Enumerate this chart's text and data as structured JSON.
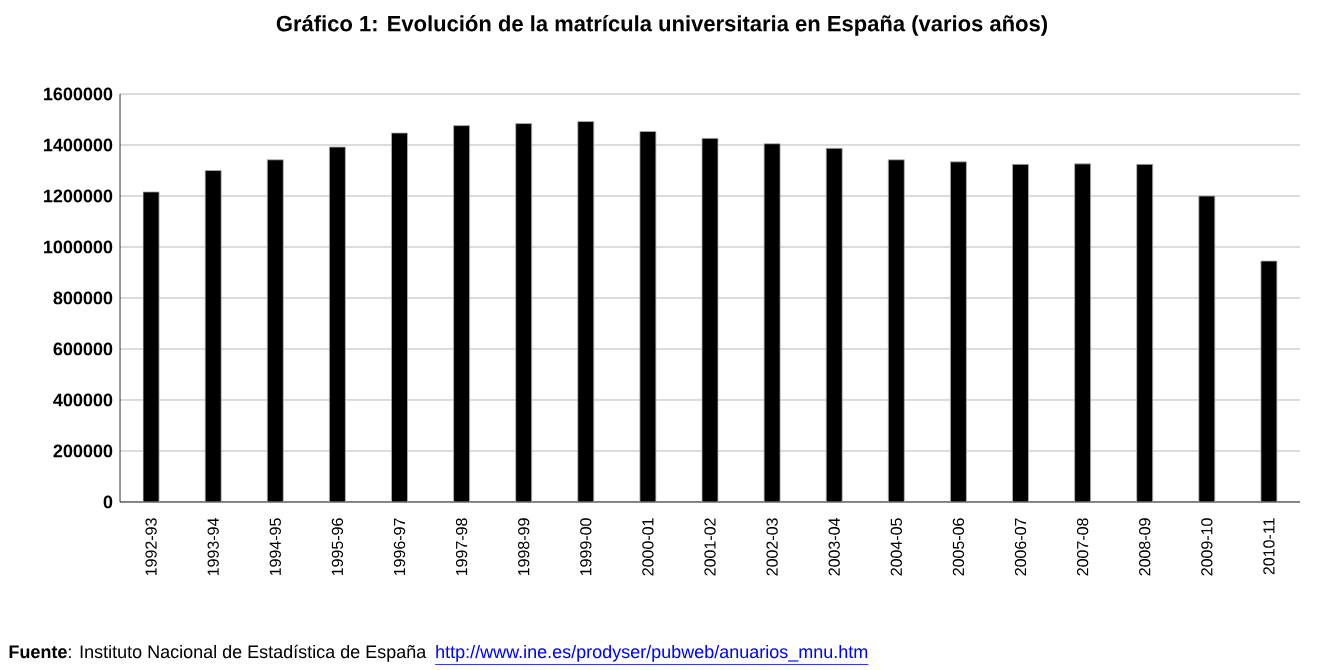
{
  "chart_data": {
    "type": "bar",
    "title": "Gráfico 1: Evolución de la matrícula universitaria en España (varios años)",
    "categories": [
      "1992-93",
      "1993-94",
      "1994-95",
      "1995-96",
      "1996-97",
      "1997-98",
      "1998-99",
      "1999-00",
      "2000-01",
      "2001-02",
      "2002-03",
      "2003-04",
      "2004-05",
      "2005-06",
      "2006-07",
      "2007-08",
      "2008-09",
      "2009-10",
      "2010-11"
    ],
    "values": [
      1216000,
      1300000,
      1342000,
      1392000,
      1447000,
      1476000,
      1484000,
      1492000,
      1453000,
      1426000,
      1405000,
      1387000,
      1342000,
      1334000,
      1324000,
      1326000,
      1324000,
      1200000,
      945000
    ],
    "color": "#000000",
    "ylim": [
      0,
      1600000
    ],
    "yticks": [
      0,
      200000,
      400000,
      600000,
      800000,
      1000000,
      1200000,
      1400000,
      1600000
    ],
    "grid": "y",
    "annotations": [
      "**Fuente**: Instituto Nacional de Estadística de España",
      "http://www.ine.es/prodyser/pubweb/anuarios_mnu.htm"
    ]
  }
}
